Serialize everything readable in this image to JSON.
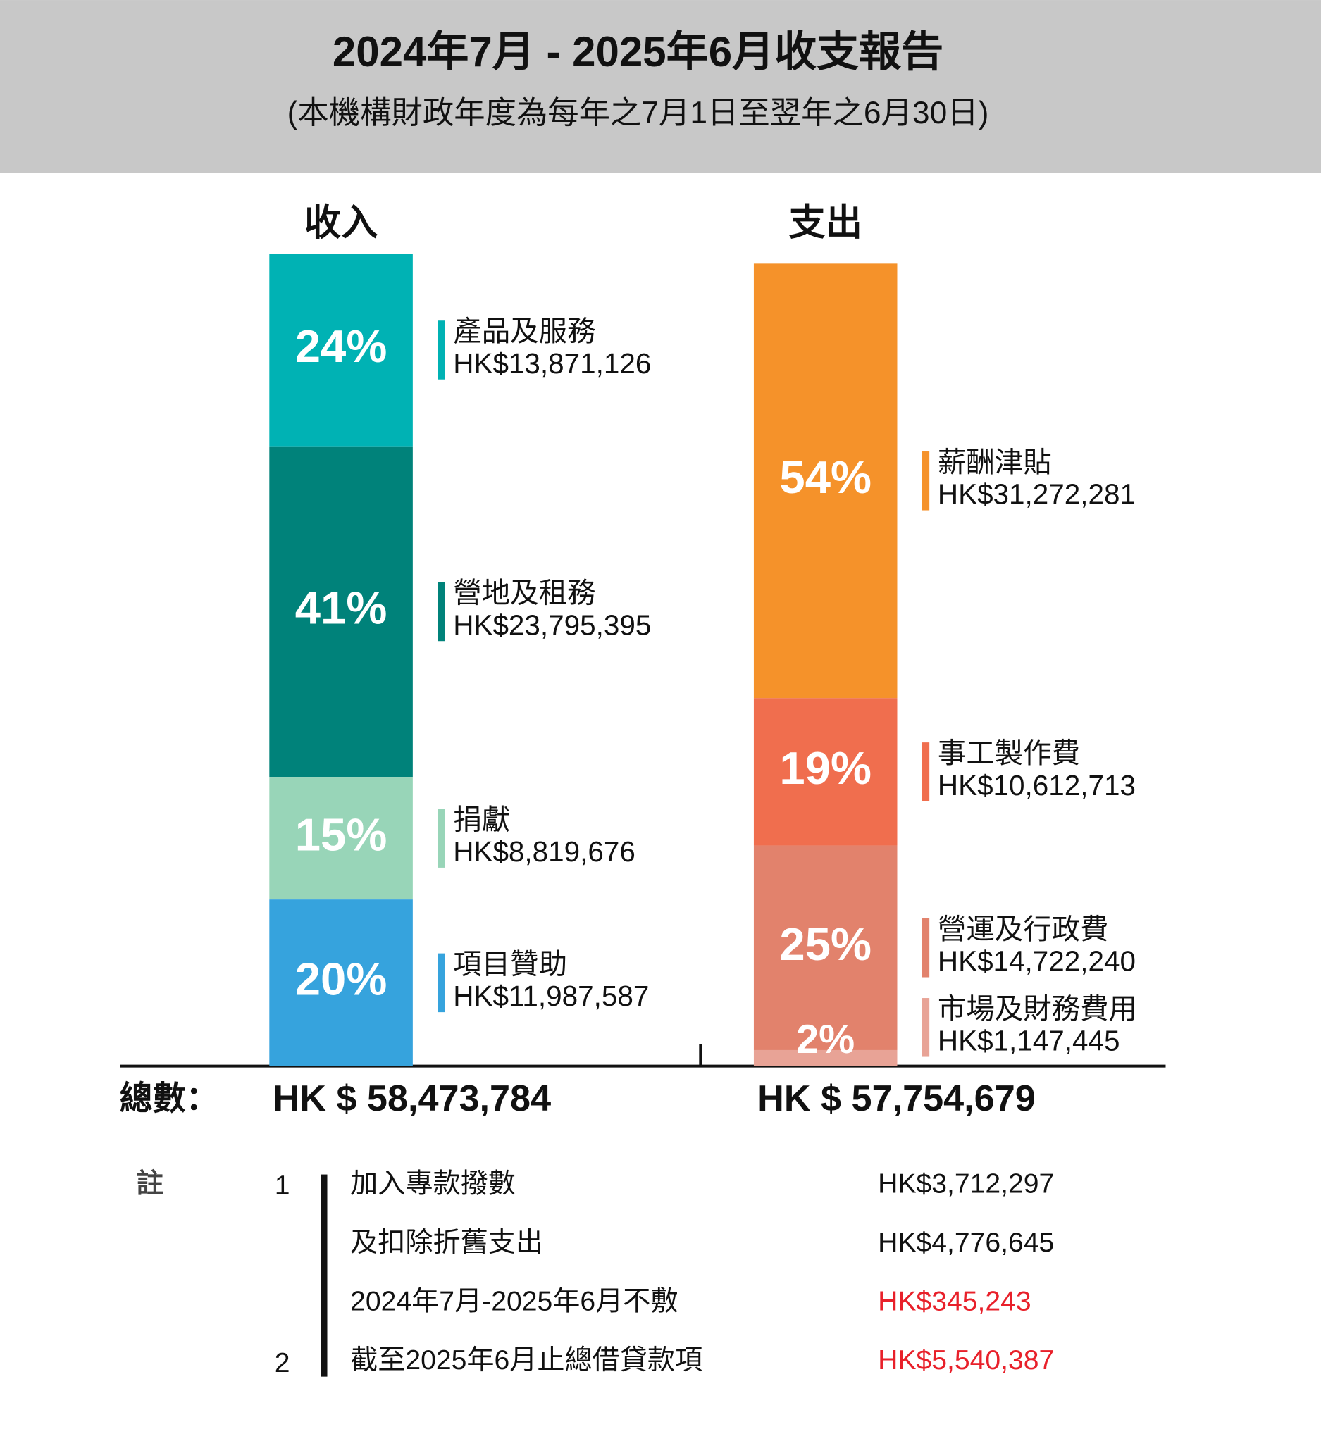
{
  "title": "2024年7月 - 2025年6月收支報告",
  "subtitle": "(本機構財政年度為每年之7月1日至翌年之6月30日)",
  "total_caption": "總數：",
  "chart_data": [
    {
      "type": "stacked-bar",
      "title": "收入",
      "categories": [
        "產品及服務",
        "營地及租務",
        "捐獻",
        "項目贊助"
      ],
      "values": [
        13871126,
        23795395,
        8819676,
        11987587
      ],
      "value_labels": [
        "HK$13,871,126",
        "HK$23,795,395",
        "HK$8,819,676",
        "HK$11,987,587"
      ],
      "shares": [
        "24%",
        "41%",
        "15%",
        "20%"
      ],
      "colors": [
        "#00b2b4",
        "#00827a",
        "#98d5b8",
        "#36a3dd"
      ],
      "total": 58473784,
      "total_label": "HK $ 58,473,784"
    },
    {
      "type": "stacked-bar",
      "title": "支出",
      "categories": [
        "薪酬津貼",
        "事工製作費",
        "營運及行政費",
        "市場及財務費用"
      ],
      "values": [
        31272281,
        10612713,
        14722240,
        1147445
      ],
      "value_labels": [
        "HK$31,272,281",
        "HK$10,612,713",
        "HK$14,722,240",
        "HK$1,147,445"
      ],
      "shares": [
        "54%",
        "19%",
        "25%",
        "2%"
      ],
      "colors": [
        "#f5922a",
        "#f06e4e",
        "#e2826c",
        "#e8a396"
      ],
      "total": 57754679,
      "total_label": "HK $ 57,754,679"
    }
  ],
  "notes": {
    "label": "註",
    "rows": [
      {
        "number": "1",
        "text": "加入專款撥數",
        "amount": "HK$3,712,297",
        "color": "#111111"
      },
      {
        "number": null,
        "text": "及扣除折舊支出",
        "amount": "HK$4,776,645",
        "color": "#111111"
      },
      {
        "number": null,
        "text": "2024年7月-2025年6月不敷",
        "amount": "HK$345,243",
        "color": "#e8202a"
      },
      {
        "number": "2",
        "text": "截至2025年6月止總借貸款項",
        "amount": "HK$5,540,387",
        "color": "#e8202a"
      }
    ]
  }
}
